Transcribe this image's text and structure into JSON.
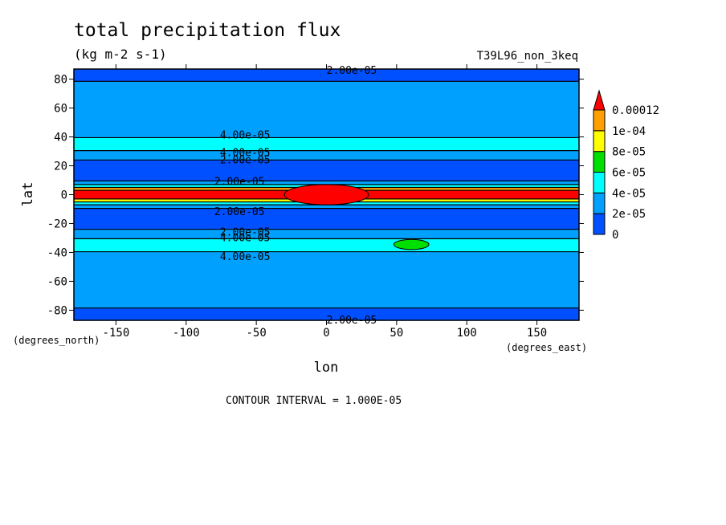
{
  "chart_data": {
    "type": "heatmap",
    "title": "total precipitation flux",
    "units": "(kg m-2 s-1)",
    "run_label": "T39L96_non_3keq",
    "xlabel": "lon",
    "ylabel": "lat",
    "x_units": "(degrees_east)",
    "y_units": "(degrees_north)",
    "xlim": [
      -180,
      180
    ],
    "ylim": [
      -87,
      87
    ],
    "x_ticks": [
      -150,
      -100,
      -50,
      0,
      50,
      100,
      150
    ],
    "y_ticks": [
      80,
      60,
      40,
      20,
      0,
      -20,
      -40,
      -60,
      -80
    ],
    "x_tick_labels": [
      "-150",
      "-100",
      "-50",
      "0",
      "50",
      "100",
      "150"
    ],
    "y_tick_labels": [
      "80",
      "60",
      "40",
      "20",
      "0",
      "-20",
      "-40",
      "-60",
      "-80"
    ],
    "color_levels": [
      0,
      2e-05,
      4e-05,
      6e-05,
      8e-05,
      0.0001,
      0.00012
    ],
    "colorbar_labels": [
      "0.00012",
      "1e-04",
      "8e-05",
      "6e-05",
      "4e-05",
      "2e-05",
      "0"
    ],
    "colorbar_colors": [
      "#0050ff",
      "#00a0ff",
      "#00ffff",
      "#00e000",
      "#ffff00",
      "#ffa000",
      "#ff0000"
    ],
    "zonal_profile": [
      {
        "lat": 87,
        "value": 8e-06
      },
      {
        "lat": 84,
        "value": 1.2e-05
      },
      {
        "lat": 80,
        "value": 1.7e-05
      },
      {
        "lat": 77,
        "value": 2.2e-05
      },
      {
        "lat": 72,
        "value": 2.9e-05
      },
      {
        "lat": 66,
        "value": 3.1e-05
      },
      {
        "lat": 60,
        "value": 2.7e-05
      },
      {
        "lat": 55,
        "value": 2.3e-05
      },
      {
        "lat": 50,
        "value": 2.1e-05
      },
      {
        "lat": 45,
        "value": 2.8e-05
      },
      {
        "lat": 41,
        "value": 3.8e-05
      },
      {
        "lat": 38,
        "value": 4.6e-05
      },
      {
        "lat": 35,
        "value": 4.8e-05
      },
      {
        "lat": 32,
        "value": 4.3e-05
      },
      {
        "lat": 29,
        "value": 3.5e-05
      },
      {
        "lat": 26,
        "value": 2.6e-05
      },
      {
        "lat": 22,
        "value": 1.6e-05
      },
      {
        "lat": 18,
        "value": 1.2e-05
      },
      {
        "lat": 14,
        "value": 1.2e-05
      },
      {
        "lat": 11,
        "value": 1.4e-05
      },
      {
        "lat": 8,
        "value": 2.2e-05
      },
      {
        "lat": 6,
        "value": 5.5e-05
      },
      {
        "lat": 4,
        "value": 0.0001
      },
      {
        "lat": 2,
        "value": 0.00014
      },
      {
        "lat": 0,
        "value": 0.00015
      },
      {
        "lat": -2,
        "value": 0.00014
      },
      {
        "lat": -4,
        "value": 9.5e-05
      },
      {
        "lat": -6,
        "value": 4.5e-05
      },
      {
        "lat": -8,
        "value": 2.2e-05
      },
      {
        "lat": -11,
        "value": 1.4e-05
      },
      {
        "lat": -14,
        "value": 1.2e-05
      },
      {
        "lat": -18,
        "value": 1.3e-05
      },
      {
        "lat": -22,
        "value": 1.7e-05
      },
      {
        "lat": -26,
        "value": 2.6e-05
      },
      {
        "lat": -29,
        "value": 3.5e-05
      },
      {
        "lat": -32,
        "value": 4.4e-05
      },
      {
        "lat": -35,
        "value": 4.9e-05
      },
      {
        "lat": -38,
        "value": 4.6e-05
      },
      {
        "lat": -41,
        "value": 3.7e-05
      },
      {
        "lat": -45,
        "value": 2.8e-05
      },
      {
        "lat": -50,
        "value": 2.2e-05
      },
      {
        "lat": -55,
        "value": 2.4e-05
      },
      {
        "lat": -60,
        "value": 2.7e-05
      },
      {
        "lat": -66,
        "value": 3e-05
      },
      {
        "lat": -72,
        "value": 2.8e-05
      },
      {
        "lat": -77,
        "value": 2.2e-05
      },
      {
        "lat": -80,
        "value": 1.7e-05
      },
      {
        "lat": -84,
        "value": 1.2e-05
      },
      {
        "lat": -87,
        "value": 8e-06
      }
    ],
    "anomalies": [
      {
        "name": "equatorial-maximum",
        "lon_min": -30,
        "lon_max": 30,
        "lat_min": -7,
        "lat_max": 7,
        "value": 0.00013
      },
      {
        "name": "south-midlatitude-maximum",
        "lon_min": 48,
        "lon_max": 73,
        "lat_min": -38,
        "lat_max": -31,
        "value": 6.2e-05
      }
    ],
    "contour_labels": [
      {
        "text": "2.00e-05",
        "lon": 18,
        "lat": 86
      },
      {
        "text": "4.00e-05",
        "lon": -58,
        "lat": 41
      },
      {
        "text": "4.00e-05",
        "lon": -58,
        "lat": 29
      },
      {
        "text": "2.00e-05",
        "lon": -58,
        "lat": 24
      },
      {
        "text": "2.00e-05",
        "lon": -62,
        "lat": 9
      },
      {
        "text": "2.00e-05",
        "lon": -62,
        "lat": -12
      },
      {
        "text": "2.00e-05",
        "lon": -58,
        "lat": -26
      },
      {
        "text": "4.00e-05",
        "lon": -58,
        "lat": -30
      },
      {
        "text": "4.00e-05",
        "lon": -58,
        "lat": -43
      },
      {
        "text": "2.00e-05",
        "lon": 18,
        "lat": -87
      }
    ]
  },
  "footer": {
    "contour_interval": "CONTOUR INTERVAL = 1.000E-05"
  }
}
